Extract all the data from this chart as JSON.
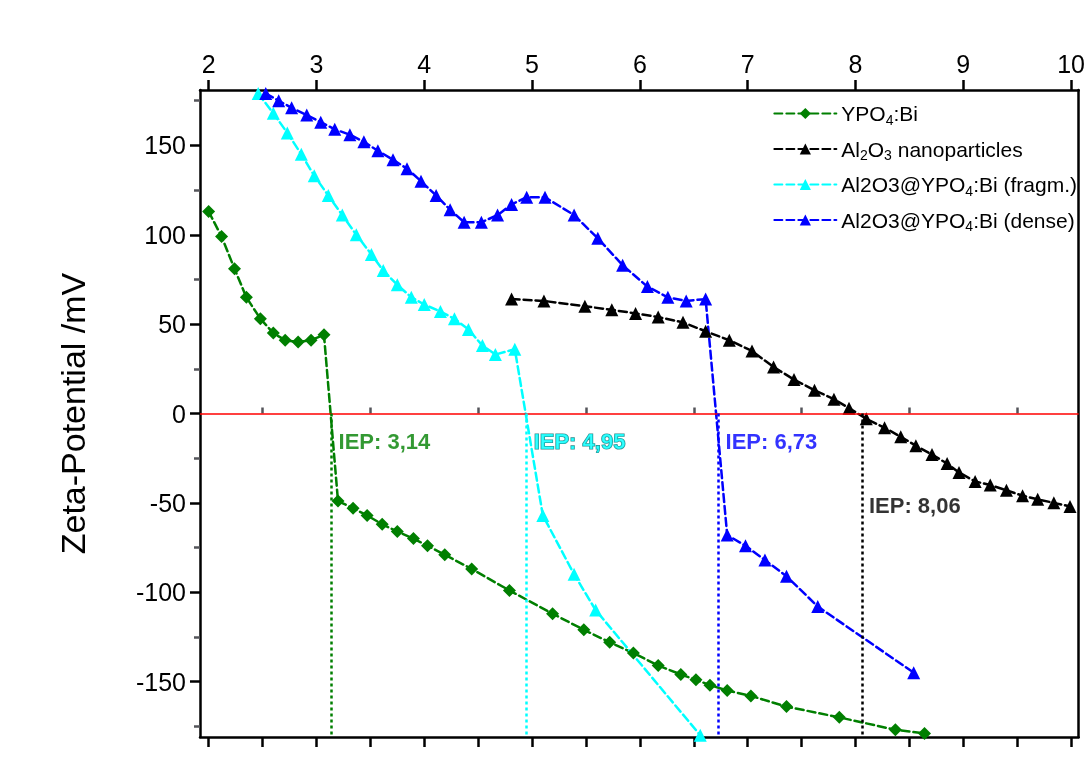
{
  "chart_data": {
    "type": "line",
    "ylabel": "Zeta-Potential /mV",
    "xlim": [
      1.92,
      10.07
    ],
    "xticks": [
      2,
      3,
      4,
      5,
      6,
      7,
      8,
      9,
      10
    ],
    "ylim": [
      -181,
      181
    ],
    "yticks": [
      -150,
      -100,
      -50,
      0,
      50,
      100,
      150
    ],
    "grid": false,
    "legend": "top right",
    "line_style": "dashed",
    "series": [
      {
        "name": "YPO$_{4}$:Bi",
        "color": "#007f00",
        "marker": "diamond",
        "x": [
          2.0,
          2.12,
          2.24,
          2.35,
          2.48,
          2.6,
          2.71,
          2.83,
          2.95,
          3.07,
          3.2,
          3.34,
          3.47,
          3.61,
          3.75,
          3.9,
          4.03,
          4.19,
          4.44,
          4.79,
          5.19,
          5.48,
          5.72,
          5.94,
          6.17,
          6.38,
          6.52,
          6.65,
          6.81,
          7.03,
          7.36,
          7.85,
          8.37,
          8.64
        ],
        "values": [
          113,
          99,
          81,
          65,
          53,
          45,
          41,
          40,
          41,
          44,
          -49,
          -53,
          -57,
          -62,
          -66,
          -70,
          -74,
          -79,
          -87,
          -99,
          -112,
          -121,
          -128,
          -134,
          -141,
          -146,
          -149,
          -152,
          -155,
          -158,
          -164,
          -170,
          -177,
          -179
        ]
      },
      {
        "name": "Al$_{2}$O$_{3}$ nanoparticles",
        "color": "#000000",
        "marker": "triangle",
        "x": [
          4.81,
          5.11,
          5.49,
          5.74,
          5.96,
          6.17,
          6.4,
          6.61,
          6.83,
          7.04,
          7.24,
          7.43,
          7.62,
          7.8,
          7.94,
          8.1,
          8.27,
          8.42,
          8.56,
          8.71,
          8.85,
          8.96,
          9.11,
          9.25,
          9.4,
          9.55,
          9.69,
          9.84,
          9.99
        ],
        "values": [
          64,
          63,
          60,
          58,
          56,
          54,
          51,
          46,
          41,
          35,
          26,
          19,
          13,
          8,
          3,
          -3,
          -8,
          -13,
          -18,
          -23,
          -28,
          -33,
          -38,
          -40,
          -43,
          -46,
          -48,
          -50,
          -52
        ]
      },
      {
        "name": "Al2O3@YPO$_{4}$:Bi (fragm.)",
        "color": "#00ffff",
        "marker": "triangle",
        "x": [
          2.46,
          2.6,
          2.73,
          2.86,
          2.98,
          3.11,
          3.24,
          3.37,
          3.51,
          3.62,
          3.75,
          3.88,
          4.0,
          4.15,
          4.28,
          4.41,
          4.54,
          4.66,
          4.84,
          5.1,
          5.39,
          5.59,
          6.56
        ],
        "values": [
          179,
          168,
          157,
          145,
          133,
          122,
          111,
          100,
          89,
          80,
          72,
          65,
          61,
          57,
          53,
          47,
          38,
          33,
          36,
          -57,
          -90,
          -110,
          -180
        ]
      },
      {
        "name": "Al2O3@YPO$_{4}$:Bi (dense)",
        "color": "#0000ff",
        "marker": "triangle",
        "x": [
          2.53,
          2.65,
          2.77,
          2.91,
          3.04,
          3.17,
          3.31,
          3.44,
          3.57,
          3.71,
          3.84,
          3.97,
          4.11,
          4.24,
          4.37,
          4.53,
          4.68,
          4.81,
          4.95,
          5.12,
          5.39,
          5.61,
          5.84,
          6.07,
          6.26,
          6.43,
          6.61,
          6.81,
          6.98,
          7.16,
          7.36,
          7.65,
          8.54
        ],
        "values": [
          179,
          175,
          171,
          167,
          163,
          159,
          156,
          152,
          147,
          142,
          137,
          130,
          122,
          114,
          107,
          107,
          111,
          117,
          121,
          121,
          111,
          98,
          83,
          71,
          65,
          63,
          64,
          -68,
          -74,
          -82,
          -91,
          -108,
          -145
        ]
      }
    ],
    "ref_lines": [
      {
        "axis": "y",
        "value": 0,
        "color": "#ff0000",
        "line_style": "solid"
      },
      {
        "axis": "x",
        "value": 3.14,
        "label": "IEP: 3,14",
        "color": "#007f00",
        "line_style": "dotted"
      },
      {
        "axis": "x",
        "value": 4.95,
        "label": "IEP: 4,95",
        "color": "#00ffff",
        "line_style": "dotted"
      },
      {
        "axis": "x",
        "value": 6.73,
        "label": "IEP: 6,73",
        "color": "#0000ff",
        "line_style": "dotted"
      },
      {
        "axis": "x",
        "value": 8.06,
        "label": "IEP: 8,06",
        "color": "#000000",
        "line_style": "dotted"
      }
    ]
  }
}
